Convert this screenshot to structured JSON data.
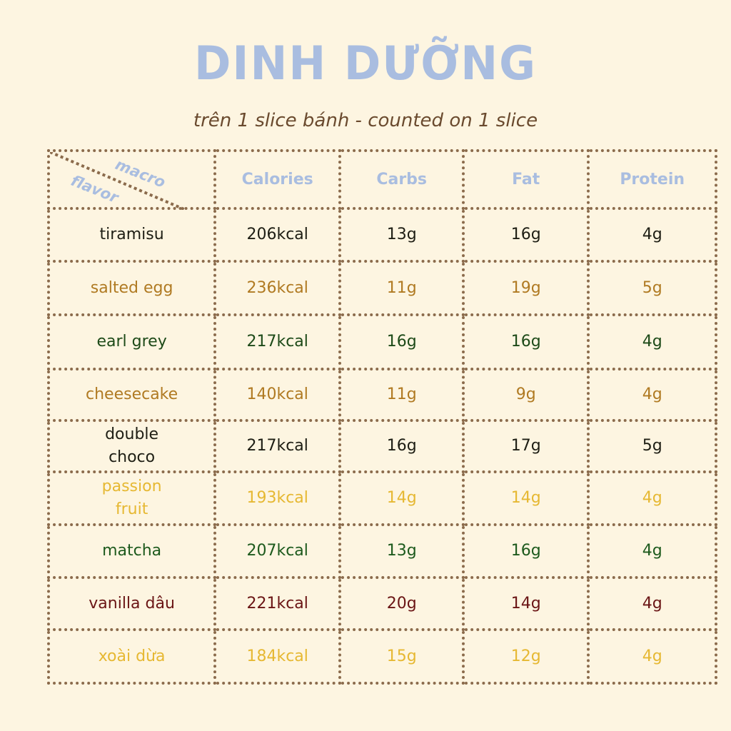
{
  "title": "DINH DƯỠNG",
  "subtitle": "trên 1 slice bánh - counted on 1 slice",
  "header": {
    "corner_top": "macro",
    "corner_bottom": "flavor",
    "columns": [
      "Calories",
      "Carbs",
      "Fat",
      "Protein"
    ],
    "color": "#a9bde0"
  },
  "rows": [
    {
      "flavor": "tiramisu",
      "calories": "206kcal",
      "carbs": "13g",
      "fat": "16g",
      "protein": "4g",
      "color": "#1e1e14"
    },
    {
      "flavor": "salted egg",
      "calories": "236kcal",
      "carbs": "11g",
      "fat": "19g",
      "protein": "5g",
      "color": "#b07a22"
    },
    {
      "flavor": "earl grey",
      "calories": "217kcal",
      "carbs": "16g",
      "fat": "16g",
      "protein": "4g",
      "color": "#1d4a18"
    },
    {
      "flavor": "cheesecake",
      "calories": "140kcal",
      "carbs": "11g",
      "fat": "9g",
      "protein": "4g",
      "color": "#b07a22"
    },
    {
      "flavor": "double choco",
      "calories": "217kcal",
      "carbs": "16g",
      "fat": "17g",
      "protein": "5g",
      "color": "#1e1e14"
    },
    {
      "flavor": "passion fruit",
      "calories": "193kcal",
      "carbs": "14g",
      "fat": "14g",
      "protein": "4g",
      "color": "#e6b832"
    },
    {
      "flavor": "matcha",
      "calories": "207kcal",
      "carbs": "13g",
      "fat": "16g",
      "protein": "4g",
      "color": "#1d5a1d"
    },
    {
      "flavor": "vanilla dâu",
      "calories": "221kcal",
      "carbs": "20g",
      "fat": "14g",
      "protein": "4g",
      "color": "#6a1515"
    },
    {
      "flavor": "xoài dừa",
      "calories": "184kcal",
      "carbs": "15g",
      "fat": "12g",
      "protein": "4g",
      "color": "#e6b832"
    }
  ]
}
